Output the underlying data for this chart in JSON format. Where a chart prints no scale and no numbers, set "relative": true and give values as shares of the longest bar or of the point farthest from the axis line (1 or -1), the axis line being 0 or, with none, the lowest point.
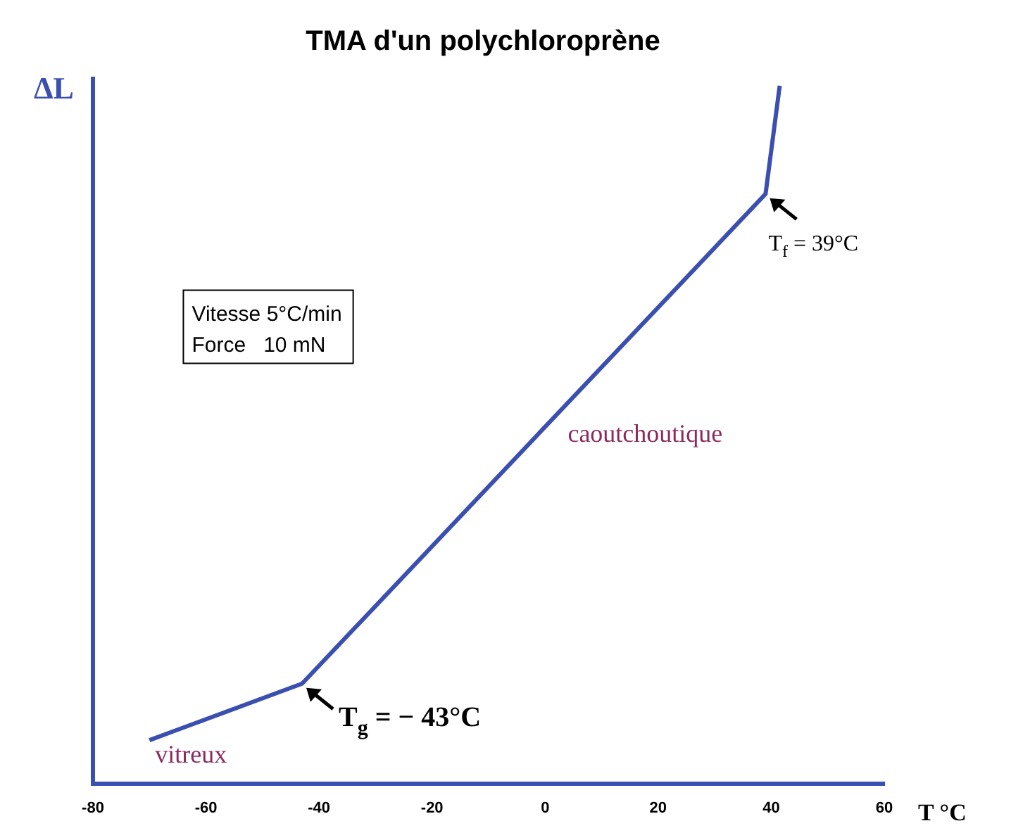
{
  "chart_data": {
    "type": "line",
    "title": "TMA d'un polychloroprène",
    "xlabel": "T °C",
    "ylabel": "ΔL",
    "relative": true,
    "xlim": [
      -80,
      60
    ],
    "xticks": [
      -80,
      -60,
      -40,
      -20,
      0,
      20,
      40,
      60
    ],
    "grid": false,
    "legend": false,
    "line_style": "solid",
    "series": [
      {
        "color": "#3a4fb0",
        "x": [
          -70,
          -43,
          39,
          41.5
        ],
        "values": [
          0.062,
          0.143,
          0.845,
          1
        ]
      }
    ],
    "annotations": [
      "Vitesse 5°C/min",
      "Force   10 mN",
      "vitreux",
      "caoutchoutique",
      {
        "text": "T$_{g}$ = − 43°C",
        "x": -43,
        "y": 0.143
      },
      {
        "text": "T$_{f}$ = 39°C",
        "x": 39,
        "y": 0.845
      }
    ]
  }
}
